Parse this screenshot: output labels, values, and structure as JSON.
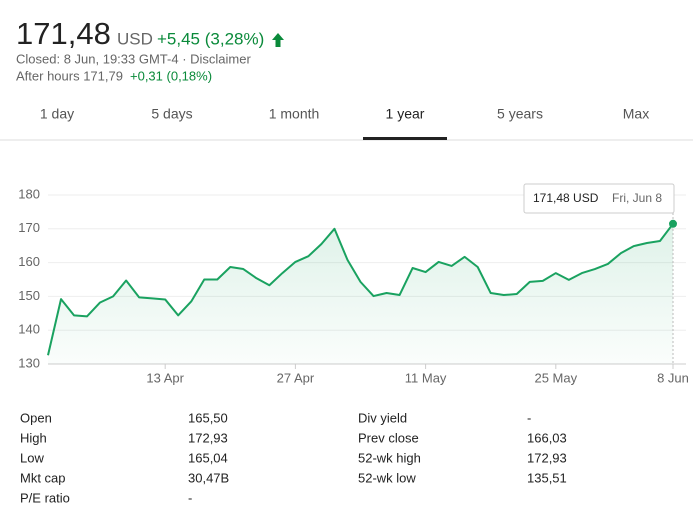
{
  "header": {
    "price": "171,48",
    "currency": "USD",
    "change": "+5,45 (3,28%)",
    "closed": "Closed: 8 Jun, 19:33 GMT-4 · Disclaimer",
    "after_hours": "After hours 171,79",
    "after_hours_change": "+0,31 (0,18%)"
  },
  "tabs": [
    "1 day",
    "5 days",
    "1 month",
    "1 year",
    "5 years",
    "Max"
  ],
  "selected_tab": 3,
  "chart_data": {
    "type": "line",
    "color": "#1aa260",
    "categories": [
      null,
      null,
      null,
      null,
      null,
      null,
      null,
      null,
      null,
      "13 Apr",
      null,
      null,
      null,
      null,
      null,
      null,
      null,
      null,
      null,
      "27 Apr",
      null,
      null,
      null,
      null,
      null,
      null,
      null,
      null,
      null,
      "11 May",
      null,
      null,
      null,
      null,
      null,
      null,
      null,
      null,
      null,
      "25 May",
      null,
      null,
      null,
      null,
      null,
      null,
      null,
      null,
      "8 Jun"
    ],
    "values": [
      132.6,
      149.2,
      144.4,
      144.1,
      148.2,
      150,
      154.7,
      149.7,
      149.4,
      149.1,
      144.4,
      148.5,
      155,
      155,
      158.7,
      158.1,
      155.4,
      153.3,
      156.9,
      160.2,
      161.9,
      165.5,
      170,
      160.8,
      154.3,
      150.1,
      151,
      150.4,
      158.4,
      157.2,
      160.2,
      159,
      161.7,
      158.7,
      151,
      150.4,
      150.7,
      154.3,
      154.6,
      156.9,
      154.9,
      156.9,
      158.1,
      159.6,
      162.8,
      164.9,
      165.8,
      166.4,
      171.48
    ],
    "ylim": [
      130,
      180
    ],
    "yticks": [
      130,
      140,
      150,
      160,
      170,
      180
    ],
    "grid": true,
    "tooltip_value": "171,48 USD",
    "tooltip_date": "Fri, Jun 8"
  },
  "stats": [
    [
      "Open",
      "165,50",
      "Div yield",
      "-"
    ],
    [
      "High",
      "172,93",
      "Prev close",
      "166,03"
    ],
    [
      "Low",
      "165,04",
      "52-wk high",
      "172,93"
    ],
    [
      "Mkt cap",
      "30,47B",
      "52-wk low",
      "135,51"
    ],
    [
      "P/E ratio",
      "-",
      null,
      null
    ]
  ]
}
